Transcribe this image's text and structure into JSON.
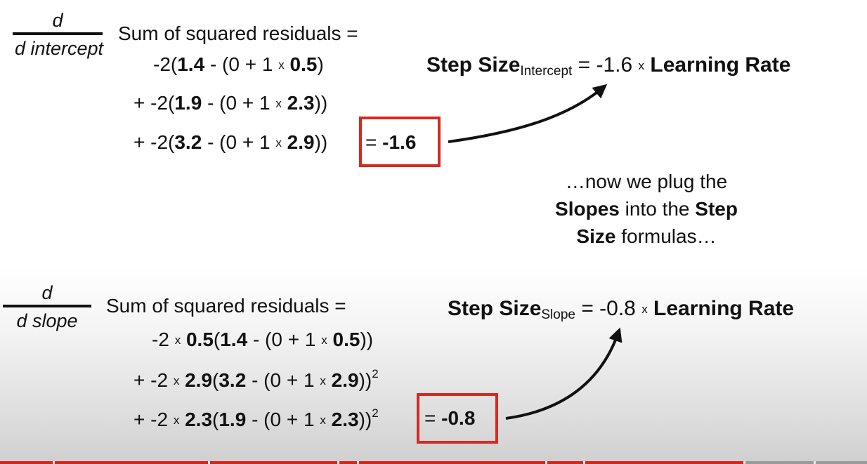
{
  "top": {
    "numerator": "d",
    "denominator": "d intercept",
    "label": "Sum of squared residuals =",
    "line1": {
      "a": "-2(",
      "b": "1.4",
      "c": " - (0 + 1 ",
      "x": "x",
      "d": " ",
      "e": "0.5",
      "f": ")"
    },
    "line2": {
      "a": "+ -2(",
      "b": "1.9",
      "c": " - (0 + 1 ",
      "x": "x",
      "d": " ",
      "e": "2.3",
      "f": "))"
    },
    "line3": {
      "a": "+ -2(",
      "b": "3.2",
      "c": " - (0 + 1 ",
      "x": "x",
      "d": " ",
      "e": "2.9",
      "f": "))"
    },
    "result_eq": "= ",
    "result_val": "-1.6",
    "step": {
      "label": "Step Size",
      "sub": "Intercept",
      "mid": " = -1.6 ",
      "x": "x",
      "lr": " Learning Rate"
    }
  },
  "note": {
    "l1": "…now we plug the",
    "l2a": "Slopes",
    "l2b": " into the ",
    "l2c": "Step",
    "l3a": "Size",
    "l3b": " formulas…"
  },
  "bottom": {
    "numerator": "d",
    "denominator": "d slope",
    "label": "Sum of squared residuals =",
    "line1": {
      "a": "-2 ",
      "x1": "x",
      "b": " ",
      "c": "0.5",
      "d": "(",
      "e": "1.4",
      "f": " - (0 + 1 ",
      "x2": "x",
      "g": " ",
      "h": "0.5",
      "i": "))",
      "sup": ""
    },
    "line2": {
      "a": "+ -2 ",
      "x1": "x",
      "b": " ",
      "c": "2.9",
      "d": "(",
      "e": "3.2",
      "f": " - (0 + 1 ",
      "x2": "x",
      "g": " ",
      "h": "2.9",
      "i": "))",
      "sup": "2"
    },
    "line3": {
      "a": "+ -2 ",
      "x1": "x",
      "b": " ",
      "c": "2.3",
      "d": "(",
      "e": "1.9",
      "f": " - (0 + 1 ",
      "x2": "x",
      "g": " ",
      "h": "2.3",
      "i": "))",
      "sup": "2"
    },
    "result_eq": "= ",
    "result_val": "-0.8",
    "step": {
      "label": "Step Size",
      "sub": "Slope",
      "mid": " = -0.8 ",
      "x": "x",
      "lr": " Learning Rate"
    }
  },
  "progress": {
    "played_fraction": 0.86
  },
  "colors": {
    "box": "#d42a22",
    "progress": "#d8231a"
  }
}
